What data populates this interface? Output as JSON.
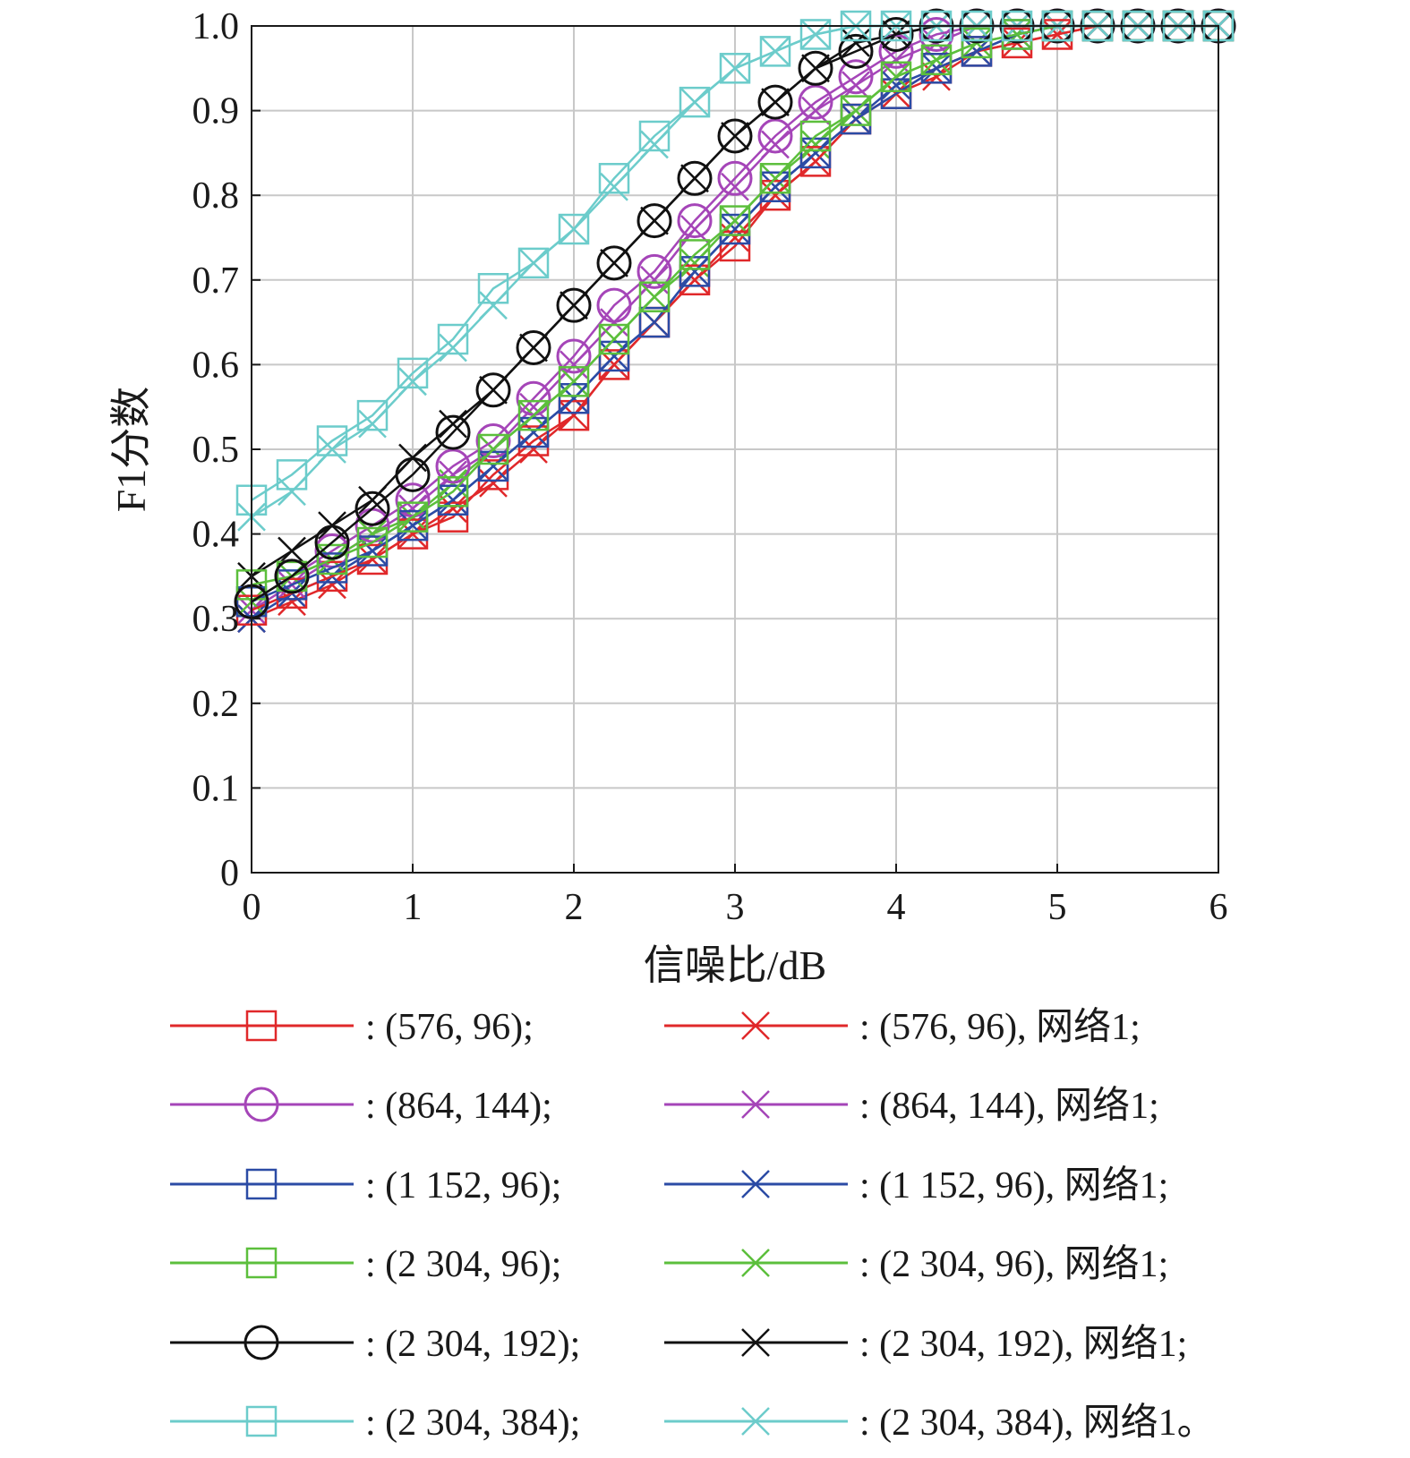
{
  "chart_data": {
    "type": "line",
    "xlabel": "信噪比/dB",
    "ylabel": "F1分数",
    "xlim": [
      0,
      6
    ],
    "ylim": [
      0,
      1.0
    ],
    "x_ticks": [
      "0",
      "1",
      "2",
      "3",
      "4",
      "5",
      "6"
    ],
    "y_ticks": [
      "0",
      "0.1",
      "0.2",
      "0.3",
      "0.4",
      "0.5",
      "0.6",
      "0.7",
      "0.8",
      "0.9",
      "1.0"
    ],
    "grid": true,
    "x": [
      0,
      0.25,
      0.5,
      0.75,
      1,
      1.25,
      1.5,
      1.75,
      2,
      2.25,
      2.5,
      2.75,
      3,
      3.25,
      3.5,
      3.75,
      4,
      4.25,
      4.5,
      4.75,
      5,
      5.25,
      5.5,
      5.75,
      6
    ],
    "series": [
      {
        "name": ": (576, 96);",
        "color": "#e0282a",
        "marker": "square",
        "values": [
          0.31,
          0.33,
          0.35,
          0.37,
          0.4,
          0.42,
          0.47,
          0.51,
          0.54,
          0.6,
          0.65,
          0.7,
          0.74,
          0.8,
          0.84,
          0.89,
          0.92,
          0.95,
          0.97,
          0.98,
          0.99,
          1.0,
          1.0,
          1.0,
          1.0
        ]
      },
      {
        "name": ": (864, 144);",
        "color": "#a545b8",
        "marker": "circle",
        "values": [
          0.32,
          0.35,
          0.38,
          0.41,
          0.44,
          0.48,
          0.51,
          0.56,
          0.61,
          0.67,
          0.71,
          0.77,
          0.82,
          0.87,
          0.91,
          0.94,
          0.97,
          0.99,
          1.0,
          1.0,
          1.0,
          1.0,
          1.0,
          1.0,
          1.0
        ]
      },
      {
        "name": ": (1 152, 96);",
        "color": "#2b4ba5",
        "marker": "square",
        "values": [
          0.32,
          0.34,
          0.36,
          0.38,
          0.41,
          0.44,
          0.48,
          0.52,
          0.56,
          0.61,
          0.65,
          0.71,
          0.76,
          0.81,
          0.85,
          0.89,
          0.92,
          0.95,
          0.97,
          0.99,
          1.0,
          1.0,
          1.0,
          1.0,
          1.0
        ]
      },
      {
        "name": ": (2 304, 96);",
        "color": "#5cbf3c",
        "marker": "square",
        "values": [
          0.34,
          0.35,
          0.37,
          0.39,
          0.42,
          0.45,
          0.5,
          0.54,
          0.58,
          0.63,
          0.68,
          0.73,
          0.77,
          0.82,
          0.87,
          0.9,
          0.94,
          0.96,
          0.98,
          0.99,
          1.0,
          1.0,
          1.0,
          1.0,
          1.0
        ]
      },
      {
        "name": ": (2 304, 192);",
        "color": "#111111",
        "marker": "circle",
        "values": [
          0.32,
          0.35,
          0.39,
          0.43,
          0.47,
          0.52,
          0.57,
          0.62,
          0.67,
          0.72,
          0.77,
          0.82,
          0.87,
          0.91,
          0.95,
          0.97,
          0.99,
          1.0,
          1.0,
          1.0,
          1.0,
          1.0,
          1.0,
          1.0,
          1.0
        ]
      },
      {
        "name": ": (2 304, 384);",
        "color": "#6ccccb",
        "marker": "square",
        "values": [
          0.44,
          0.47,
          0.51,
          0.54,
          0.59,
          0.63,
          0.69,
          0.72,
          0.76,
          0.82,
          0.87,
          0.91,
          0.95,
          0.97,
          0.99,
          1.0,
          1.0,
          1.0,
          1.0,
          1.0,
          1.0,
          1.0,
          1.0,
          1.0,
          1.0
        ]
      },
      {
        "name": ": (576, 96), 网络1;",
        "color": "#e0282a",
        "marker": "x",
        "values": [
          0.3,
          0.32,
          0.34,
          0.37,
          0.4,
          0.43,
          0.46,
          0.5,
          0.54,
          0.6,
          0.65,
          0.7,
          0.75,
          0.8,
          0.84,
          0.89,
          0.92,
          0.94,
          0.97,
          0.98,
          0.99,
          1.0,
          1.0,
          1.0,
          1.0
        ]
      },
      {
        "name": ": (864, 144), 网络1;",
        "color": "#a545b8",
        "marker": "x",
        "values": [
          0.31,
          0.34,
          0.37,
          0.4,
          0.43,
          0.47,
          0.5,
          0.55,
          0.6,
          0.65,
          0.7,
          0.76,
          0.81,
          0.86,
          0.9,
          0.93,
          0.96,
          0.98,
          1.0,
          1.0,
          1.0,
          1.0,
          1.0,
          1.0,
          1.0
        ]
      },
      {
        "name": ": (1 152, 96), 网络1;",
        "color": "#2b4ba5",
        "marker": "x",
        "values": [
          0.3,
          0.33,
          0.35,
          0.38,
          0.41,
          0.44,
          0.48,
          0.52,
          0.56,
          0.61,
          0.65,
          0.71,
          0.76,
          0.81,
          0.85,
          0.89,
          0.93,
          0.95,
          0.97,
          0.99,
          1.0,
          1.0,
          1.0,
          1.0,
          1.0
        ]
      },
      {
        "name": ": (2 304, 96), 网络1;",
        "color": "#5cbf3c",
        "marker": "x",
        "values": [
          0.32,
          0.35,
          0.37,
          0.4,
          0.42,
          0.46,
          0.5,
          0.54,
          0.58,
          0.63,
          0.68,
          0.72,
          0.77,
          0.82,
          0.86,
          0.9,
          0.94,
          0.96,
          0.98,
          0.99,
          1.0,
          1.0,
          1.0,
          1.0,
          1.0
        ]
      },
      {
        "name": ": (2 304, 192), 网络1;",
        "color": "#111111",
        "marker": "x",
        "values": [
          0.35,
          0.38,
          0.41,
          0.44,
          0.49,
          0.53,
          0.57,
          0.62,
          0.67,
          0.72,
          0.77,
          0.82,
          0.87,
          0.91,
          0.95,
          0.98,
          0.99,
          1.0,
          1.0,
          1.0,
          1.0,
          1.0,
          1.0,
          1.0,
          1.0
        ]
      },
      {
        "name": ": (2 304, 384), 网络1。",
        "color": "#6ccccb",
        "marker": "x",
        "values": [
          0.42,
          0.45,
          0.5,
          0.53,
          0.58,
          0.62,
          0.67,
          0.72,
          0.76,
          0.81,
          0.86,
          0.91,
          0.95,
          0.97,
          0.99,
          1.0,
          1.0,
          1.0,
          1.0,
          1.0,
          1.0,
          1.0,
          1.0,
          1.0,
          1.0
        ]
      }
    ],
    "legend": {
      "placement": "bottom",
      "columns": 2
    }
  }
}
